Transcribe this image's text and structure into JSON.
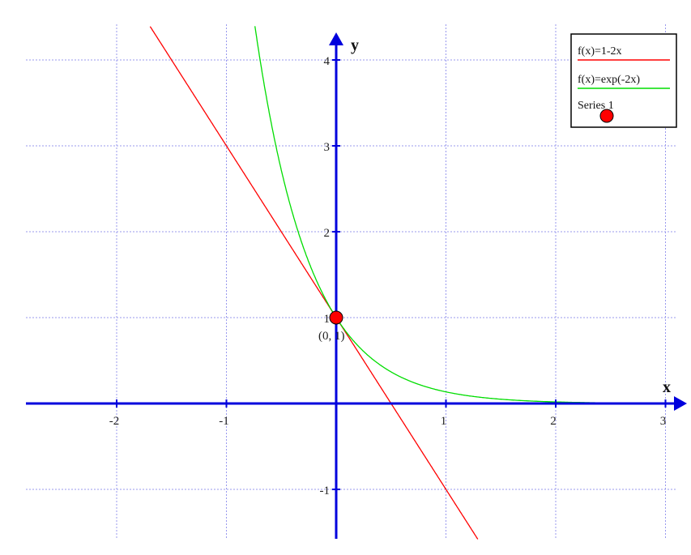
{
  "chart_data": {
    "type": "line",
    "xlabel": "x",
    "ylabel": "y",
    "xlim": [
      -2.83,
      3.05
    ],
    "ylim": [
      -1.58,
      4.4
    ],
    "grid": true,
    "legend_position": "top-right",
    "x_ticks": [
      "-2",
      "-1",
      "1",
      "2",
      "3"
    ],
    "y_ticks": [
      "-1",
      "1",
      "2",
      "3",
      "4"
    ],
    "series": [
      {
        "name": "f(x)=1-2x",
        "color": "#ff0000",
        "formula": "1-2x"
      },
      {
        "name": "f(x)=exp(-2x)",
        "color": "#00dd00",
        "formula": "exp(-2x)"
      },
      {
        "name": "Series 1",
        "color": "#ff0000",
        "points": [
          {
            "x": 0,
            "y": 1,
            "label": "(0, 1)"
          }
        ]
      }
    ],
    "axis_color": "#0000dd",
    "grid_color": "#9999ee"
  }
}
